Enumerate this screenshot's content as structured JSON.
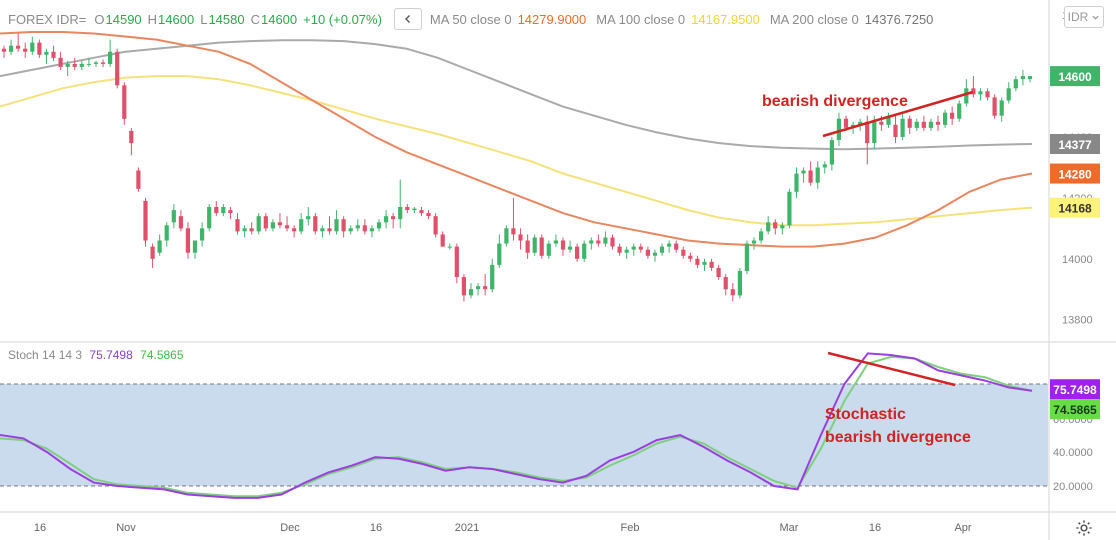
{
  "header": {
    "symbol": "FOREX IDR=",
    "open_label": "O",
    "open": "14590",
    "high_label": "H",
    "high": "14600",
    "low_label": "L",
    "low": "14580",
    "close_label": "C",
    "close": "14600",
    "change": "+10 (+0.07%)",
    "ma50_label": "MA 50 close 0",
    "ma50_value": "14279.9000",
    "ma100_label": "MA 100 close 0",
    "ma100_value": "14167.9500",
    "ma200_label": "MA 200 close 0",
    "ma200_value": "14376.7250"
  },
  "currency_button": "IDR",
  "stoch_header": {
    "label": "Stoch 14 14 3",
    "k_value": "75.7498",
    "d_value": "74.5865"
  },
  "colors": {
    "up": "#3fb56a",
    "down": "#e0506a",
    "ma50": "#e8865f",
    "ma100": "#f5e279",
    "ma200": "#aaaaaa",
    "stoch_k": "#9b3ee0",
    "stoch_d": "#7fcf7f",
    "band": "#c9dbed",
    "annotation": "#d22222"
  },
  "chart_data": [
    {
      "type": "candlestick",
      "y_ticks": [
        13800,
        14000,
        14200,
        14400,
        14600,
        14800
      ],
      "ylim": [
        13730,
        14850
      ],
      "x_ticks": [
        "16",
        "Nov",
        "Dec",
        "16",
        "2021",
        "Feb",
        "Mar",
        "16",
        "Apr"
      ],
      "price_labels": [
        {
          "value": 14600,
          "text": "14600",
          "color": "#3fb56a"
        },
        {
          "value": 14377,
          "text": "14377",
          "color": "#888888"
        },
        {
          "value": 14280,
          "text": "14280",
          "color": "#f06a2a"
        },
        {
          "value": 14168,
          "text": "14168",
          "color": "#fff27a"
        }
      ],
      "candles": [
        [
          14690,
          14700,
          14660,
          14680
        ],
        [
          14680,
          14720,
          14670,
          14700
        ],
        [
          14700,
          14740,
          14680,
          14690
        ],
        [
          14690,
          14710,
          14660,
          14680
        ],
        [
          14680,
          14730,
          14670,
          14710
        ],
        [
          14710,
          14720,
          14660,
          14670
        ],
        [
          14670,
          14690,
          14640,
          14680
        ],
        [
          14680,
          14700,
          14650,
          14660
        ],
        [
          14660,
          14680,
          14620,
          14630
        ],
        [
          14630,
          14650,
          14600,
          14640
        ],
        [
          14640,
          14660,
          14620,
          14630
        ],
        [
          14630,
          14650,
          14620,
          14640
        ],
        [
          14640,
          14660,
          14630,
          14640
        ],
        [
          14640,
          14650,
          14630,
          14645
        ],
        [
          14645,
          14655,
          14630,
          14640
        ],
        [
          14640,
          14720,
          14630,
          14680
        ],
        [
          14680,
          14690,
          14560,
          14570
        ],
        [
          14570,
          14580,
          14440,
          14460
        ],
        [
          14420,
          14430,
          14340,
          14380
        ],
        [
          14290,
          14300,
          14220,
          14230
        ],
        [
          14190,
          14200,
          14040,
          14060
        ],
        [
          14040,
          14050,
          13970,
          14000
        ],
        [
          14020,
          14080,
          14010,
          14060
        ],
        [
          14060,
          14120,
          14040,
          14110
        ],
        [
          14120,
          14180,
          14100,
          14160
        ],
        [
          14140,
          14160,
          14090,
          14100
        ],
        [
          14100,
          14120,
          14000,
          14020
        ],
        [
          14020,
          14060,
          14000,
          14060
        ],
        [
          14060,
          14120,
          14040,
          14100
        ],
        [
          14100,
          14180,
          14090,
          14170
        ],
        [
          14170,
          14190,
          14140,
          14150
        ],
        [
          14150,
          14180,
          14140,
          14170
        ],
        [
          14160,
          14170,
          14130,
          14150
        ],
        [
          14130,
          14150,
          14080,
          14090
        ],
        [
          14090,
          14110,
          14070,
          14100
        ],
        [
          14100,
          14120,
          14080,
          14090
        ],
        [
          14090,
          14150,
          14080,
          14140
        ],
        [
          14140,
          14150,
          14090,
          14100
        ],
        [
          14100,
          14130,
          14090,
          14120
        ],
        [
          14120,
          14150,
          14100,
          14110
        ],
        [
          14110,
          14140,
          14090,
          14100
        ],
        [
          14100,
          14110,
          14070,
          14090
        ],
        [
          14090,
          14150,
          14080,
          14130
        ],
        [
          14130,
          14170,
          14110,
          14140
        ],
        [
          14140,
          14150,
          14080,
          14090
        ],
        [
          14090,
          14110,
          14070,
          14100
        ],
        [
          14100,
          14140,
          14080,
          14090
        ],
        [
          14090,
          14160,
          14080,
          14130
        ],
        [
          14130,
          14140,
          14070,
          14090
        ],
        [
          14090,
          14110,
          14080,
          14100
        ],
        [
          14100,
          14130,
          14090,
          14110
        ],
        [
          14110,
          14130,
          14080,
          14090
        ],
        [
          14090,
          14110,
          14070,
          14100
        ],
        [
          14100,
          14130,
          14090,
          14120
        ],
        [
          14120,
          14160,
          14100,
          14140
        ],
        [
          14140,
          14150,
          14100,
          14130
        ],
        [
          14130,
          14260,
          14100,
          14170
        ],
        [
          14170,
          14180,
          14150,
          14160
        ],
        [
          14160,
          14170,
          14150,
          14165
        ],
        [
          14160,
          14170,
          14140,
          14150
        ],
        [
          14150,
          14160,
          14130,
          14140
        ],
        [
          14140,
          14150,
          14070,
          14080
        ],
        [
          14080,
          14090,
          14040,
          14040
        ],
        [
          14040,
          14050,
          14030,
          14040
        ],
        [
          14040,
          14050,
          13920,
          13940
        ],
        [
          13940,
          13950,
          13860,
          13880
        ],
        [
          13880,
          13920,
          13870,
          13900
        ],
        [
          13900,
          13920,
          13880,
          13910
        ],
        [
          13910,
          13950,
          13880,
          13900
        ],
        [
          13900,
          14000,
          13890,
          13980
        ],
        [
          13980,
          14080,
          13970,
          14050
        ],
        [
          14050,
          14110,
          14040,
          14100
        ],
        [
          14100,
          14200,
          14060,
          14080
        ],
        [
          14080,
          14100,
          14030,
          14060
        ],
        [
          14060,
          14080,
          14000,
          14020
        ],
        [
          14020,
          14080,
          14010,
          14070
        ],
        [
          14070,
          14080,
          14000,
          14010
        ],
        [
          14010,
          14060,
          14000,
          14050
        ],
        [
          14050,
          14080,
          14040,
          14060
        ],
        [
          14060,
          14070,
          14010,
          14030
        ],
        [
          14030,
          14060,
          14020,
          14040
        ],
        [
          14040,
          14050,
          13990,
          14000
        ],
        [
          14000,
          14060,
          13990,
          14050
        ],
        [
          14050,
          14070,
          14030,
          14060
        ],
        [
          14060,
          14080,
          14040,
          14050
        ],
        [
          14050,
          14090,
          14040,
          14070
        ],
        [
          14070,
          14080,
          14030,
          14040
        ],
        [
          14040,
          14050,
          14010,
          14020
        ],
        [
          14020,
          14040,
          14000,
          14030
        ],
        [
          14030,
          14050,
          14010,
          14040
        ],
        [
          14040,
          14050,
          14020,
          14030
        ],
        [
          14030,
          14040,
          14000,
          14010
        ],
        [
          14010,
          14030,
          13990,
          14020
        ],
        [
          14020,
          14050,
          14010,
          14040
        ],
        [
          14040,
          14060,
          14020,
          14050
        ],
        [
          14050,
          14060,
          14020,
          14030
        ],
        [
          14030,
          14040,
          14000,
          14010
        ],
        [
          14010,
          14020,
          13990,
          14000
        ],
        [
          14000,
          14010,
          13970,
          13980
        ],
        [
          13980,
          14000,
          13960,
          13990
        ],
        [
          13990,
          14000,
          13960,
          13970
        ],
        [
          13970,
          13980,
          13930,
          13940
        ],
        [
          13940,
          13950,
          13880,
          13900
        ],
        [
          13900,
          13920,
          13860,
          13880
        ],
        [
          13880,
          13970,
          13870,
          13960
        ],
        [
          13960,
          14060,
          13950,
          14050
        ],
        [
          14050,
          14070,
          14030,
          14060
        ],
        [
          14060,
          14100,
          14050,
          14090
        ],
        [
          14090,
          14140,
          14080,
          14120
        ],
        [
          14120,
          14130,
          14080,
          14100
        ],
        [
          14100,
          14120,
          14080,
          14110
        ],
        [
          14110,
          14230,
          14100,
          14220
        ],
        [
          14220,
          14300,
          14200,
          14280
        ],
        [
          14280,
          14300,
          14250,
          14290
        ],
        [
          14290,
          14320,
          14240,
          14250
        ],
        [
          14250,
          14320,
          14230,
          14300
        ],
        [
          14300,
          14320,
          14280,
          14310
        ],
        [
          14310,
          14400,
          14290,
          14390
        ],
        [
          14390,
          14480,
          14370,
          14460
        ],
        [
          14460,
          14470,
          14420,
          14430
        ],
        [
          14430,
          14450,
          14410,
          14440
        ],
        [
          14440,
          14460,
          14420,
          14450
        ],
        [
          14450,
          14470,
          14310,
          14380
        ],
        [
          14380,
          14470,
          14360,
          14450
        ],
        [
          14450,
          14470,
          14420,
          14440
        ],
        [
          14440,
          14480,
          14430,
          14470
        ],
        [
          14440,
          14470,
          14380,
          14400
        ],
        [
          14400,
          14480,
          14390,
          14460
        ],
        [
          14460,
          14470,
          14410,
          14430
        ],
        [
          14430,
          14460,
          14420,
          14450
        ],
        [
          14450,
          14470,
          14420,
          14430
        ],
        [
          14430,
          14460,
          14420,
          14450
        ],
        [
          14450,
          14470,
          14420,
          14440
        ],
        [
          14440,
          14490,
          14430,
          14480
        ],
        [
          14480,
          14500,
          14440,
          14460
        ],
        [
          14460,
          14520,
          14450,
          14510
        ],
        [
          14510,
          14590,
          14500,
          14560
        ],
        [
          14560,
          14600,
          14530,
          14540
        ],
        [
          14540,
          14560,
          14520,
          14550
        ],
        [
          14550,
          14560,
          14520,
          14530
        ],
        [
          14530,
          14540,
          14460,
          14470
        ],
        [
          14470,
          14530,
          14450,
          14520
        ],
        [
          14520,
          14580,
          14510,
          14560
        ],
        [
          14560,
          14600,
          14550,
          14590
        ],
        [
          14590,
          14620,
          14570,
          14600
        ],
        [
          14590,
          14600,
          14580,
          14600
        ]
      ],
      "ma50": [
        14740,
        14745,
        14745,
        14740,
        14730,
        14720,
        14700,
        14680,
        14640,
        14580,
        14520,
        14460,
        14400,
        14350,
        14310,
        14270,
        14230,
        14190,
        14150,
        14120,
        14100,
        14080,
        14060,
        14050,
        14045,
        14040,
        14040,
        14050,
        14070,
        14110,
        14160,
        14220,
        14260,
        14280
      ],
      "ma100": [
        14500,
        14530,
        14560,
        14580,
        14595,
        14600,
        14600,
        14590,
        14570,
        14545,
        14520,
        14490,
        14460,
        14435,
        14410,
        14380,
        14350,
        14320,
        14280,
        14250,
        14220,
        14190,
        14160,
        14135,
        14120,
        14110,
        14110,
        14115,
        14120,
        14130,
        14140,
        14150,
        14160,
        14168
      ],
      "ma200": [
        14600,
        14620,
        14640,
        14660,
        14680,
        14690,
        14700,
        14710,
        14715,
        14718,
        14718,
        14715,
        14705,
        14690,
        14660,
        14620,
        14580,
        14540,
        14500,
        14470,
        14440,
        14415,
        14395,
        14380,
        14370,
        14365,
        14362,
        14360,
        14362,
        14365,
        14368,
        14372,
        14375,
        14377
      ]
    },
    {
      "type": "line",
      "title": "Stoch 14 14 3",
      "y_ticks": [
        20,
        40,
        60,
        80
      ],
      "y_tick_labels": [
        "20.0000",
        "40.0000",
        "60.0000",
        "80.0000"
      ],
      "ylim": [
        0,
        100
      ],
      "band": [
        20,
        80
      ],
      "value_labels": [
        {
          "value": 75.7498,
          "text": "75.7498",
          "color": "#a020f0"
        },
        {
          "value": 74.5865,
          "text": "74.5865",
          "color": "#66dd44"
        }
      ],
      "series": [
        {
          "name": "K",
          "values": [
            50,
            48,
            40,
            30,
            22,
            20,
            19,
            18,
            15,
            14,
            13,
            13,
            15,
            22,
            28,
            32,
            37,
            36,
            33,
            29,
            31,
            30,
            27,
            24,
            22,
            26,
            35,
            40,
            47,
            50,
            43,
            35,
            28,
            20,
            18,
            50,
            80,
            98,
            97,
            95,
            88,
            85,
            82,
            78,
            76
          ]
        },
        {
          "name": "D",
          "values": [
            48,
            47,
            42,
            33,
            24,
            21,
            20,
            19,
            16,
            15,
            14,
            14,
            16,
            21,
            27,
            31,
            36,
            37,
            34,
            30,
            31,
            30,
            28,
            25,
            23,
            25,
            32,
            38,
            45,
            49,
            45,
            37,
            30,
            23,
            19,
            42,
            70,
            92,
            96,
            95,
            90,
            86,
            84,
            79,
            76
          ]
        }
      ]
    }
  ],
  "annotations": {
    "price_divergence": "bearish divergence",
    "stoch_divergence_line1": "Stochastic",
    "stoch_divergence_line2": "bearish divergence"
  }
}
